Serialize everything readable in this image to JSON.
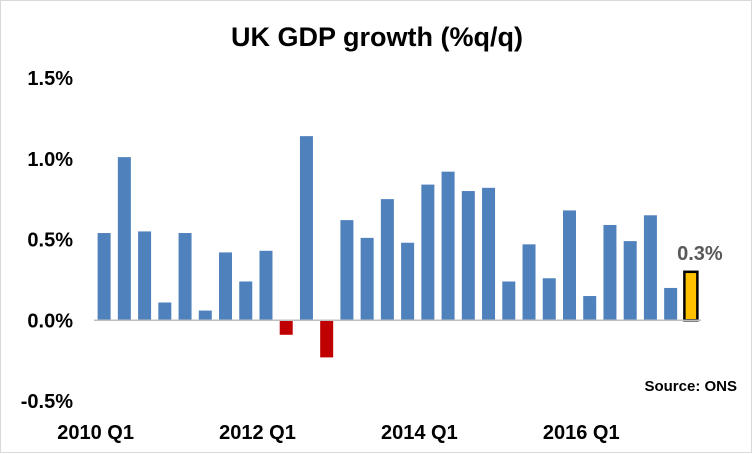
{
  "chart_data": {
    "type": "bar",
    "title": "UK GDP growth (%q/q)",
    "xlabel": "",
    "ylabel": "",
    "ylim": [
      -0.5,
      1.5
    ],
    "yticks": [
      -0.5,
      0.0,
      0.5,
      1.0,
      1.5
    ],
    "ytick_labels": [
      "-0.5%",
      "0.0%",
      "0.5%",
      "1.0%",
      "1.5%"
    ],
    "categories": [
      "2010 Q1",
      "2010 Q2",
      "2010 Q3",
      "2010 Q4",
      "2011 Q1",
      "2011 Q2",
      "2011 Q3",
      "2011 Q4",
      "2012 Q1",
      "2012 Q2",
      "2012 Q3",
      "2012 Q4",
      "2013 Q1",
      "2013 Q2",
      "2013 Q3",
      "2013 Q4",
      "2014 Q1",
      "2014 Q2",
      "2014 Q3",
      "2014 Q4",
      "2015 Q1",
      "2015 Q2",
      "2015 Q3",
      "2015 Q4",
      "2016 Q1",
      "2016 Q2",
      "2016 Q3",
      "2016 Q4",
      "2017 Q1",
      "2017 Q2"
    ],
    "xtick_labels": [
      {
        "index": 0,
        "label": "2010 Q1"
      },
      {
        "index": 8,
        "label": "2012 Q1"
      },
      {
        "index": 16,
        "label": "2014 Q1"
      },
      {
        "index": 24,
        "label": "2016 Q1"
      }
    ],
    "values": [
      0.54,
      1.01,
      0.55,
      0.11,
      0.54,
      0.06,
      0.42,
      0.24,
      0.43,
      -0.09,
      1.14,
      -0.23,
      0.62,
      0.51,
      0.75,
      0.48,
      0.84,
      0.92,
      0.8,
      0.82,
      0.24,
      0.47,
      0.26,
      0.68,
      0.15,
      0.59,
      0.49,
      0.65,
      0.2,
      0.3
    ],
    "colors": {
      "positive": "#4f81bd",
      "negative": "#c00000",
      "highlight": "#ffc000",
      "highlight_border": "#000000",
      "zero_line": "#bfbfbf"
    },
    "highlight_index": 29,
    "data_labels": [
      {
        "index": 29,
        "label": "0.3%"
      }
    ],
    "annotation": "Source: ONS",
    "grid": false,
    "legend": "none"
  }
}
